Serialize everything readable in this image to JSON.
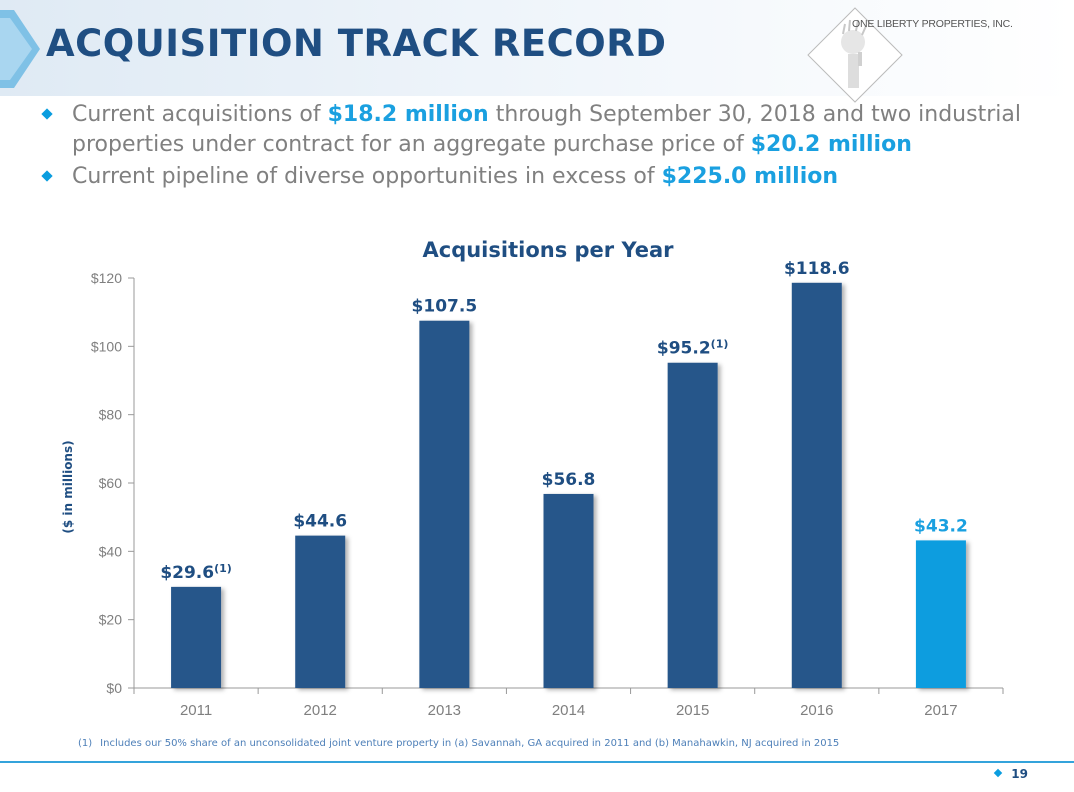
{
  "header": {
    "title": "ACQUISITION TRACK RECORD",
    "logo_text": "ONE LIBERTY PROPERTIES, INC."
  },
  "bullets": [
    {
      "parts": [
        {
          "text": "Current acquisitions of ",
          "highlight": false
        },
        {
          "text": "$18.2 million",
          "highlight": true
        },
        {
          "text": " through September 30, 2018 and two industrial properties under contract for an aggregate purchase price of ",
          "highlight": false
        },
        {
          "text": "$20.2 million",
          "highlight": true
        }
      ]
    },
    {
      "parts": [
        {
          "text": "Current pipeline of diverse opportunities in excess of ",
          "highlight": false
        },
        {
          "text": "$225.0 million",
          "highlight": true
        }
      ]
    }
  ],
  "chart_data": {
    "type": "bar",
    "title": "Acquisitions per Year",
    "xlabel": "",
    "ylabel": "($ in millions)",
    "categories": [
      "2011",
      "2012",
      "2013",
      "2014",
      "2015",
      "2016",
      "2017"
    ],
    "values": [
      29.6,
      44.6,
      107.5,
      56.8,
      95.2,
      118.6,
      43.2
    ],
    "data_labels": [
      "$29.6",
      "$44.6",
      "$107.5",
      "$56.8",
      "$95.2",
      "$118.6",
      "$43.2"
    ],
    "label_footnotes": [
      "(1)",
      "",
      "",
      "",
      "(1)",
      "",
      ""
    ],
    "ylim": [
      0,
      120
    ],
    "yticks": [
      0,
      20,
      40,
      60,
      80,
      100,
      120
    ],
    "ytick_labels": [
      "$0",
      "$20",
      "$40",
      "$60",
      "$80",
      "$100",
      "$120"
    ],
    "grid": false,
    "bar_colors": [
      "#27568a",
      "#27568a",
      "#27568a",
      "#27568a",
      "#27568a",
      "#27568a",
      "#0a9ddf"
    ],
    "data_label_colors": [
      "#1f4e82",
      "#1f4e82",
      "#1f4e82",
      "#1f4e82",
      "#1f4e82",
      "#1f4e82",
      "#1aa0e0"
    ],
    "axis_color": "#999999",
    "tick_label_color": "#7f7f7f"
  },
  "footnote": {
    "marker": "(1)",
    "text": "Includes our 50% share of an unconsolidated joint venture property in (a) Savannah, GA acquired in 2011 and (b) Manahawkin, NJ acquired in 2015"
  },
  "page_number": "19",
  "colors": {
    "title": "#1f4e82",
    "accent": "#0a9ddf",
    "highlight": "#1aa0e0",
    "body_text": "#808080"
  }
}
